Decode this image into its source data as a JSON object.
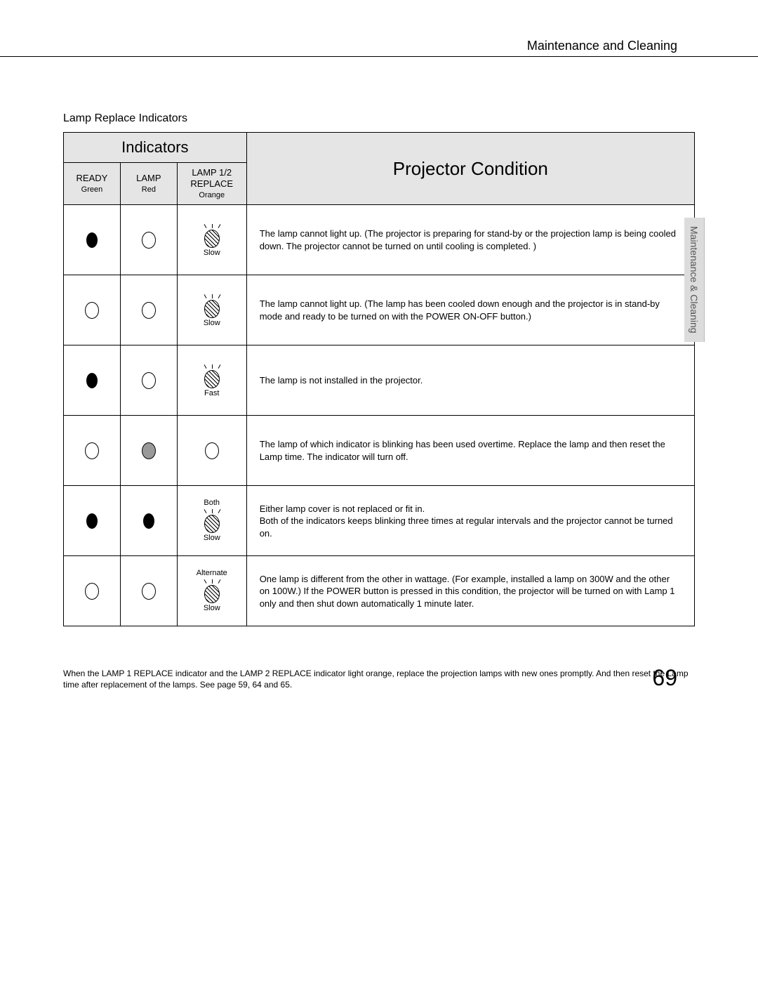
{
  "header": {
    "title": "Maintenance and Cleaning"
  },
  "section_title": "Lamp Replace Indicators",
  "side_tab": "Maintenance & Cleaning",
  "table": {
    "indicators_header": "Indicators",
    "condition_header": "Projector Condition",
    "cols": {
      "ready": {
        "name": "READY",
        "color": "Green"
      },
      "lamp": {
        "name": "LAMP",
        "color": "Red"
      },
      "replace": {
        "name": "LAMP 1/2 REPLACE",
        "color": "Orange"
      }
    },
    "rows": [
      {
        "ready": {
          "type": "solid"
        },
        "lamp": {
          "type": "outline"
        },
        "replace": {
          "type": "blink",
          "top_label": "",
          "speed": "Slow"
        },
        "condition": "The lamp cannot light up.  (The projector is preparing for stand-by or the projection lamp is being cooled down.  The projector cannot be turned on until cooling is completed. )"
      },
      {
        "ready": {
          "type": "outline"
        },
        "lamp": {
          "type": "outline"
        },
        "replace": {
          "type": "blink",
          "top_label": "",
          "speed": "Slow"
        },
        "condition": "The lamp cannot light up.  (The lamp has been cooled down enough and the projector is in stand-by mode and ready to be turned on with the POWER ON-OFF button.)"
      },
      {
        "ready": {
          "type": "solid"
        },
        "lamp": {
          "type": "outline"
        },
        "replace": {
          "type": "blink",
          "top_label": "",
          "speed": "Fast"
        },
        "condition": "The lamp is not installed in the projector."
      },
      {
        "ready": {
          "type": "outline"
        },
        "lamp": {
          "type": "gray"
        },
        "replace": {
          "type": "outline"
        },
        "condition": "The lamp of which indicator is blinking has been used overtime.  Replace the lamp and then reset the Lamp time.  The indicator will turn off."
      },
      {
        "ready": {
          "type": "solid"
        },
        "lamp": {
          "type": "solid"
        },
        "replace": {
          "type": "blink",
          "top_label": "Both",
          "speed": "Slow"
        },
        "condition": "Either lamp cover is not replaced or fit in.\nBoth of the indicators keeps blinking three times at regular intervals and the projector cannot be turned on."
      },
      {
        "ready": {
          "type": "outline"
        },
        "lamp": {
          "type": "outline"
        },
        "replace": {
          "type": "blink",
          "top_label": "Alternate",
          "speed": "Slow"
        },
        "condition": "One lamp is different from the other in wattage. (For example, installed  a lamp on 300W and the other on 100W.)  If the POWER button is pressed in this condition, the projector will be turned on with  Lamp 1 only and then shut down automatically 1 minute later."
      }
    ]
  },
  "footnote": "When the LAMP 1 REPLACE indicator and  the LAMP 2 REPLACE indicator light orange,  replace the projection lamps with new ones promptly.  And then reset the Lamp time after replacement of the lamps.  See page 59, 64 and 65.",
  "page_number": "69"
}
